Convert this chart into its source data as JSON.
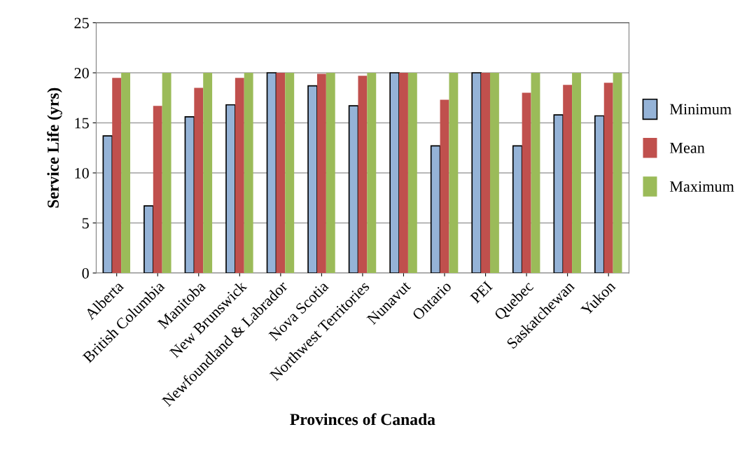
{
  "chart_data": {
    "type": "bar",
    "xlabel": "Provinces of Canada",
    "ylabel": "Service Life (yrs)",
    "categories": [
      "Alberta",
      "British Columbia",
      "Manitoba",
      "New Brunswick",
      "Newfoundland & Labrador",
      "Nova Scotia",
      "Northwest Territories",
      "Nunavut",
      "Ontario",
      "PEI",
      "Quebec",
      "Saskatchewan",
      "Yukon"
    ],
    "series": [
      {
        "name": "Minimum",
        "color": "#95b3d7",
        "values": [
          13.7,
          6.7,
          15.6,
          16.8,
          20,
          18.7,
          16.7,
          20,
          12.7,
          20,
          12.7,
          15.8,
          15.7
        ]
      },
      {
        "name": "Mean",
        "color": "#c0504d",
        "values": [
          19.5,
          16.7,
          18.5,
          19.5,
          20,
          19.9,
          19.7,
          20,
          17.3,
          20,
          18.0,
          18.8,
          19.0
        ]
      },
      {
        "name": "Maximum",
        "color": "#9bbb59",
        "values": [
          20,
          20,
          20,
          20,
          20,
          20,
          20,
          20,
          20,
          20,
          20,
          20,
          20
        ]
      }
    ],
    "ylim": [
      0,
      25
    ],
    "yticks": [
      0,
      5,
      10,
      15,
      20,
      25
    ],
    "grid": "y",
    "legend": "right"
  }
}
